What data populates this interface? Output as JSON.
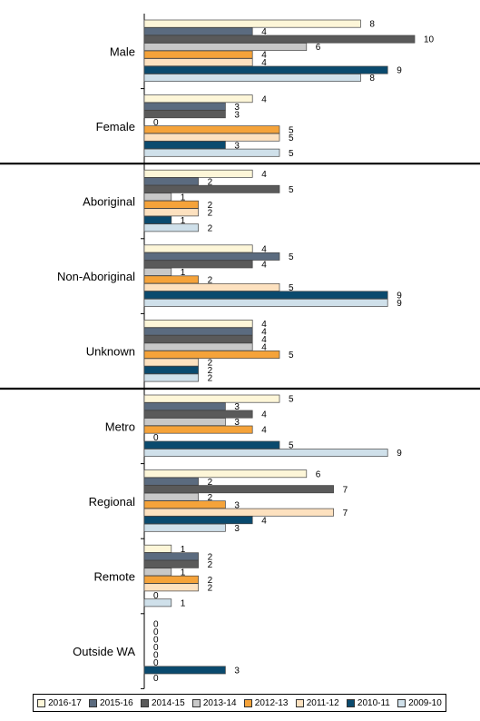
{
  "chart_data": {
    "type": "bar",
    "orientation": "horizontal",
    "xlim": [
      0,
      10
    ],
    "grid": false,
    "legend_position": "bottom",
    "categories": [
      "Male",
      "Female",
      "Aboriginal",
      "Non-Aboriginal",
      "Unknown",
      "Metro",
      "Regional",
      "Remote",
      "Outside WA"
    ],
    "group_separators_after": [
      "Female",
      "Unknown"
    ],
    "series": [
      {
        "name": "2016-17",
        "color": "#fdf6d8",
        "values": [
          8,
          4,
          4,
          4,
          4,
          5,
          6,
          1,
          0
        ]
      },
      {
        "name": "2015-16",
        "color": "#5b6b7f",
        "values": [
          4,
          3,
          2,
          5,
          4,
          3,
          2,
          2,
          0
        ]
      },
      {
        "name": "2014-15",
        "color": "#5a5a5a",
        "values": [
          10,
          3,
          5,
          4,
          4,
          4,
          7,
          2,
          0
        ]
      },
      {
        "name": "2013-14",
        "color": "#c8c8c8",
        "values": [
          6,
          0,
          1,
          1,
          4,
          3,
          2,
          1,
          0
        ]
      },
      {
        "name": "2012-13",
        "color": "#f5a33a",
        "values": [
          4,
          5,
          2,
          2,
          5,
          4,
          3,
          2,
          0
        ]
      },
      {
        "name": "2011-12",
        "color": "#fde1bf",
        "values": [
          4,
          5,
          2,
          5,
          2,
          0,
          7,
          2,
          0
        ]
      },
      {
        "name": "2010-11",
        "color": "#0a4a6e",
        "values": [
          9,
          3,
          1,
          9,
          2,
          5,
          4,
          0,
          3
        ]
      },
      {
        "name": "2009-10",
        "color": "#cfe0ea",
        "values": [
          8,
          5,
          2,
          9,
          2,
          9,
          3,
          1,
          0
        ]
      }
    ]
  }
}
